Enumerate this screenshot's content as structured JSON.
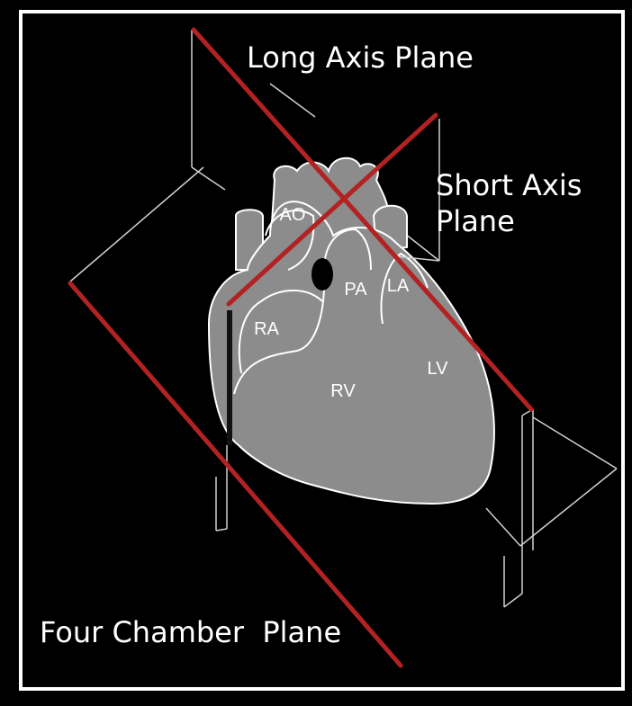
{
  "diagram": {
    "planes": {
      "long_axis": "Long Axis Plane",
      "short_axis_line1": "Short Axis",
      "short_axis_line2": "Plane",
      "four_chamber": "Four Chamber  Plane"
    },
    "chambers": {
      "ao": "AO",
      "pa": "PA",
      "la": "LA",
      "ra": "RA",
      "rv": "RV",
      "lv": "LV"
    },
    "colors": {
      "background": "#000000",
      "frame": "#ffffff",
      "plane_edges": "#cfcfcf",
      "heart_fill": "#8c8c8c",
      "heart_outline": "#ffffff",
      "cut_lines": "#b22222"
    }
  }
}
